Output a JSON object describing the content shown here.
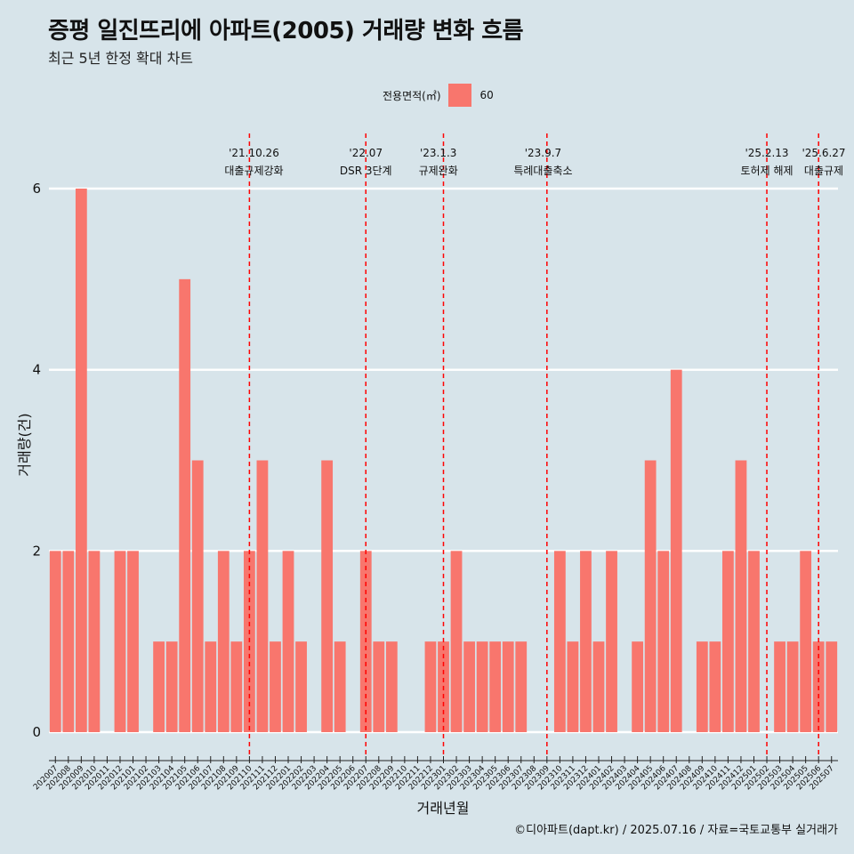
{
  "title": "증평 일진뜨리에 아파트(2005) 거래량 변화 흐름",
  "subtitle": "최근 5년 한정 확대 차트",
  "caption": "©디아파트(dapt.kr) / 2025.07.16 / 자료=국토교통부 실거래가",
  "legend": {
    "title": "전용면적(㎡)",
    "entries": [
      "60"
    ]
  },
  "colors": {
    "bar": "#f8766d",
    "ref_line": "#ff0000",
    "background": "#d7e4ea",
    "grid": "#ffffff"
  },
  "chart_data": {
    "type": "bar",
    "xlabel": "거래년월",
    "ylabel": "거래량(건)",
    "ylim": [
      0,
      6
    ],
    "yticks": [
      0,
      2,
      4,
      6
    ],
    "grid": "horizontal",
    "legend_position": "top",
    "categories": [
      "202007",
      "202008",
      "202009",
      "202010",
      "202011",
      "202012",
      "202101",
      "202102",
      "202103",
      "202104",
      "202105",
      "202106",
      "202107",
      "202108",
      "202109",
      "202110",
      "202111",
      "202112",
      "202201",
      "202202",
      "202203",
      "202204",
      "202205",
      "202206",
      "202207",
      "202208",
      "202209",
      "202210",
      "202211",
      "202212",
      "202301",
      "202302",
      "202303",
      "202304",
      "202305",
      "202306",
      "202307",
      "202308",
      "202309",
      "202310",
      "202311",
      "202312",
      "202401",
      "202402",
      "202403",
      "202404",
      "202405",
      "202406",
      "202407",
      "202408",
      "202409",
      "202410",
      "202411",
      "202412",
      "202501",
      "202502",
      "202503",
      "202504",
      "202505",
      "202506",
      "202507"
    ],
    "series": [
      {
        "name": "60",
        "values": [
          2,
          2,
          6,
          2,
          0,
          2,
          2,
          0,
          1,
          1,
          5,
          3,
          1,
          2,
          1,
          2,
          3,
          1,
          2,
          1,
          0,
          3,
          1,
          0,
          2,
          1,
          1,
          0,
          0,
          1,
          1,
          2,
          1,
          1,
          1,
          1,
          1,
          0,
          0,
          2,
          1,
          2,
          1,
          2,
          0,
          1,
          3,
          2,
          4,
          0,
          1,
          1,
          2,
          3,
          2,
          0,
          1,
          1,
          2,
          1,
          1
        ]
      }
    ],
    "annotations": [
      {
        "date": "'21.10.26",
        "label": "대출규제강화",
        "at": "202110",
        "offset": 0.35
      },
      {
        "date": "'22.07",
        "label": "DSR 3단계",
        "at": "202207",
        "offset": 0.0
      },
      {
        "date": "'23.1.3",
        "label": "규제완화",
        "at": "202301",
        "offset": -0.4
      },
      {
        "date": "'23.9.7",
        "label": "특례대출축소",
        "at": "202309",
        "offset": -0.3
      },
      {
        "date": "'25.2.13",
        "label": "토허제 해제",
        "at": "202502",
        "offset": 0.0
      },
      {
        "date": "'25.6.27",
        "label": "대출규제",
        "at": "202506",
        "offset": 0.4
      }
    ]
  }
}
